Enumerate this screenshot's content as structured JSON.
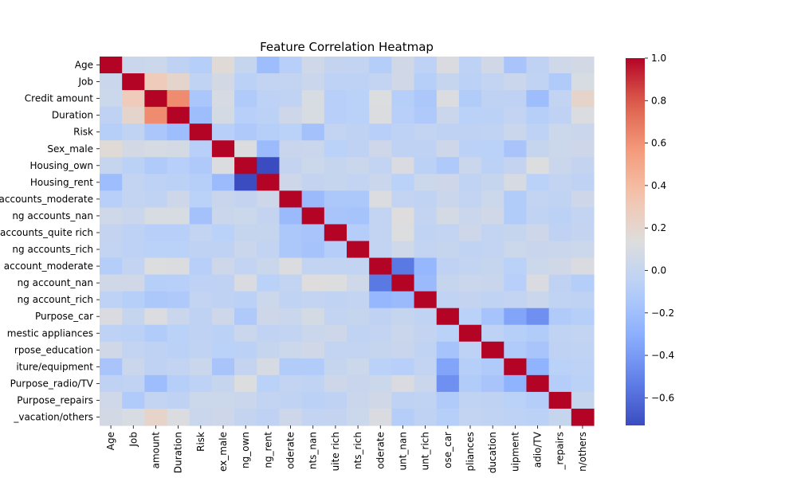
{
  "chart_data": {
    "type": "heatmap",
    "title": "Feature Correlation Heatmap",
    "labels": [
      "Age",
      "Job",
      "Credit amount",
      "Duration",
      "Risk",
      "Sex_male",
      "Housing_own",
      "Housing_rent",
      "accounts_moderate",
      "ng accounts_nan",
      "accounts_quite rich",
      "ng accounts_rich",
      "account_moderate",
      "ng account_nan",
      "ng account_rich",
      "Purpose_car",
      "mestic appliances",
      "rpose_education",
      "iture/equipment",
      "Purpose_radio/TV",
      "Purpose_repairs",
      "_vacation/others"
    ],
    "x_tick_labels": [
      "Age",
      "Job",
      "amount",
      "Duration",
      "Risk",
      "ex_male",
      "ng_own",
      "ng_rent",
      "oderate",
      "nts_nan",
      "uite rich",
      "nts_rich",
      "oderate",
      "unt_nan",
      "unt_rich",
      "ose_car",
      "pliances",
      "ducation",
      "uipment",
      "adio/TV",
      "_repairs",
      "n/others"
    ],
    "colorbar": {
      "min": -0.73,
      "max": 1.0,
      "ticks": [
        1.0,
        0.8,
        0.6,
        0.4,
        0.2,
        0.0,
        -0.2,
        -0.4,
        -0.6
      ],
      "tick_labels": [
        "1.0",
        "0.8",
        "0.6",
        "0.4",
        "0.2",
        "0.0",
        "−0.2",
        "−0.4",
        "−0.6"
      ]
    },
    "colormap": "coolwarm",
    "matrix": [
      [
        1.0,
        0.02,
        0.03,
        -0.04,
        -0.09,
        0.16,
        0.0,
        -0.21,
        -0.08,
        0.05,
        -0.01,
        -0.02,
        -0.1,
        0.06,
        -0.05,
        0.11,
        -0.05,
        0.06,
        -0.16,
        -0.04,
        0.05,
        0.07
      ],
      [
        0.02,
        1.0,
        0.29,
        0.21,
        -0.03,
        0.07,
        -0.06,
        -0.02,
        -0.02,
        0.02,
        -0.05,
        -0.05,
        -0.02,
        0.06,
        -0.09,
        0.0,
        -0.06,
        -0.02,
        0.02,
        -0.03,
        -0.12,
        0.1
      ],
      [
        0.03,
        0.29,
        1.0,
        0.62,
        -0.15,
        0.09,
        -0.12,
        -0.05,
        -0.03,
        0.1,
        -0.08,
        -0.07,
        0.13,
        -0.09,
        -0.14,
        0.12,
        -0.11,
        -0.04,
        -0.04,
        -0.21,
        -0.02,
        0.22
      ],
      [
        -0.04,
        0.21,
        0.62,
        1.0,
        -0.21,
        0.08,
        -0.08,
        -0.06,
        0.04,
        0.1,
        -0.08,
        -0.07,
        0.12,
        -0.08,
        -0.13,
        0.02,
        -0.07,
        -0.06,
        -0.02,
        -0.09,
        -0.04,
        0.12
      ],
      [
        -0.09,
        -0.03,
        -0.15,
        -0.21,
        1.0,
        -0.08,
        -0.13,
        -0.09,
        -0.07,
        -0.18,
        -0.02,
        -0.04,
        -0.08,
        -0.05,
        -0.02,
        -0.04,
        -0.04,
        -0.03,
        0.02,
        -0.05,
        0.03,
        0.02
      ],
      [
        0.16,
        0.07,
        0.09,
        0.08,
        -0.08,
        1.0,
        0.12,
        -0.22,
        0.01,
        0.02,
        -0.07,
        -0.04,
        0.04,
        -0.04,
        -0.04,
        0.04,
        -0.06,
        -0.07,
        -0.16,
        0.0,
        0.03,
        0.04
      ],
      [
        0.0,
        -0.06,
        -0.12,
        -0.08,
        -0.13,
        0.12,
        1.0,
        -0.73,
        -0.01,
        0.03,
        0.0,
        0.02,
        -0.02,
        0.11,
        -0.06,
        -0.13,
        0.02,
        -0.06,
        -0.01,
        0.13,
        0.02,
        -0.01
      ],
      [
        -0.21,
        -0.02,
        -0.05,
        -0.06,
        -0.09,
        -0.22,
        -0.73,
        1.0,
        0.04,
        -0.01,
        0.0,
        -0.02,
        0.02,
        -0.07,
        0.03,
        0.04,
        -0.03,
        0.0,
        0.09,
        -0.07,
        -0.02,
        -0.04
      ],
      [
        -0.08,
        -0.02,
        -0.03,
        0.04,
        -0.07,
        0.01,
        -0.01,
        0.04,
        1.0,
        -0.23,
        -0.14,
        -0.14,
        0.12,
        -0.02,
        -0.03,
        0.02,
        -0.02,
        0.03,
        -0.11,
        -0.02,
        -0.03,
        0.04
      ],
      [
        0.05,
        0.02,
        0.1,
        0.1,
        -0.18,
        0.02,
        0.03,
        -0.01,
        -0.23,
        1.0,
        -0.16,
        -0.17,
        -0.02,
        0.14,
        -0.02,
        0.08,
        0.02,
        0.06,
        -0.11,
        -0.03,
        -0.06,
        -0.02
      ],
      [
        -0.01,
        -0.05,
        -0.08,
        -0.08,
        -0.02,
        -0.07,
        0.0,
        0.0,
        -0.14,
        -0.16,
        1.0,
        -0.1,
        -0.02,
        0.13,
        -0.03,
        -0.02,
        0.04,
        -0.02,
        0.0,
        0.04,
        -0.04,
        -0.01
      ],
      [
        -0.02,
        -0.05,
        -0.07,
        -0.07,
        -0.04,
        -0.04,
        0.02,
        -0.02,
        -0.14,
        -0.17,
        -0.1,
        1.0,
        -0.02,
        0.05,
        -0.02,
        0.0,
        -0.03,
        -0.02,
        0.03,
        0.01,
        0.02,
        0.03
      ],
      [
        -0.1,
        -0.02,
        0.13,
        0.12,
        -0.08,
        0.04,
        -0.02,
        0.02,
        0.12,
        -0.02,
        -0.02,
        -0.02,
        1.0,
        -0.55,
        -0.25,
        -0.04,
        -0.02,
        0.0,
        -0.07,
        0.03,
        0.06,
        0.11
      ],
      [
        0.06,
        0.06,
        -0.09,
        -0.08,
        -0.05,
        -0.04,
        0.11,
        -0.07,
        -0.02,
        0.14,
        0.13,
        0.05,
        -0.55,
        1.0,
        -0.23,
        0.0,
        0.02,
        0.01,
        -0.08,
        0.11,
        -0.04,
        -0.1
      ],
      [
        -0.05,
        -0.09,
        -0.14,
        -0.13,
        -0.02,
        -0.04,
        -0.06,
        0.03,
        -0.03,
        -0.02,
        -0.03,
        -0.02,
        -0.25,
        -0.23,
        1.0,
        -0.03,
        -0.01,
        -0.03,
        -0.02,
        0.02,
        -0.03,
        -0.04
      ],
      [
        0.11,
        0.0,
        0.12,
        0.02,
        -0.04,
        0.04,
        -0.13,
        0.04,
        0.02,
        0.08,
        -0.02,
        0.0,
        -0.04,
        0.0,
        -0.03,
        1.0,
        -0.07,
        -0.17,
        -0.35,
        -0.45,
        -0.12,
        -0.09
      ],
      [
        -0.05,
        -0.06,
        -0.11,
        -0.07,
        -0.04,
        -0.06,
        0.02,
        -0.03,
        -0.02,
        0.02,
        0.04,
        -0.03,
        -0.02,
        0.02,
        -0.01,
        -0.07,
        1.0,
        -0.05,
        -0.09,
        -0.11,
        -0.03,
        -0.02
      ],
      [
        0.06,
        -0.02,
        -0.04,
        -0.06,
        -0.03,
        -0.07,
        -0.06,
        0.0,
        0.03,
        0.06,
        -0.02,
        -0.02,
        0.0,
        0.01,
        -0.03,
        -0.17,
        -0.05,
        1.0,
        -0.12,
        -0.16,
        -0.04,
        -0.03
      ],
      [
        -0.16,
        0.02,
        -0.04,
        -0.02,
        0.02,
        -0.16,
        -0.01,
        0.09,
        -0.11,
        -0.11,
        0.0,
        0.03,
        -0.07,
        -0.08,
        -0.02,
        -0.35,
        -0.09,
        -0.12,
        1.0,
        -0.28,
        -0.07,
        -0.05
      ],
      [
        -0.04,
        -0.03,
        -0.21,
        -0.09,
        -0.05,
        0.0,
        0.13,
        -0.07,
        -0.02,
        -0.03,
        0.04,
        0.01,
        0.03,
        0.11,
        0.02,
        -0.45,
        -0.11,
        -0.16,
        -0.28,
        1.0,
        -0.1,
        -0.06
      ],
      [
        0.05,
        -0.12,
        -0.02,
        -0.04,
        0.03,
        0.03,
        0.02,
        -0.02,
        -0.03,
        -0.06,
        -0.04,
        0.02,
        0.06,
        -0.04,
        -0.03,
        -0.12,
        -0.03,
        -0.04,
        -0.07,
        -0.1,
        1.0,
        0.0
      ],
      [
        0.07,
        0.1,
        0.22,
        0.12,
        0.02,
        0.04,
        -0.01,
        -0.04,
        0.04,
        -0.02,
        -0.01,
        0.03,
        0.11,
        -0.1,
        -0.04,
        -0.09,
        -0.02,
        -0.03,
        -0.05,
        -0.06,
        0.0,
        1.0
      ]
    ]
  }
}
